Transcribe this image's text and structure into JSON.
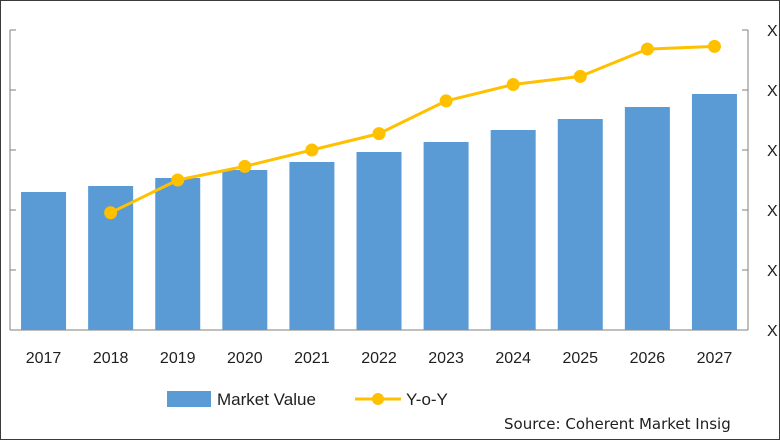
{
  "chart_data": {
    "type": "bar",
    "categories": [
      "2017",
      "2018",
      "2019",
      "2020",
      "2021",
      "2022",
      "2023",
      "2024",
      "2025",
      "2026",
      "2027"
    ],
    "series": [
      {
        "name": "Market Value",
        "type": "bar",
        "color": "#5b9bd5",
        "values": [
          138,
          144,
          152,
          160,
          168,
          178,
          188,
          200,
          211,
          223,
          236
        ]
      },
      {
        "name": "Y-o-Y",
        "type": "line",
        "color": "#ffc000",
        "marker": "circle",
        "values": [
          null,
          4.3,
          5.5,
          6.0,
          6.6,
          7.2,
          8.4,
          9.0,
          9.3,
          10.3,
          10.4
        ]
      }
    ],
    "y_left": {
      "ylim": [
        0,
        300
      ],
      "ticks": [
        "",
        "",
        "",
        "",
        "",
        ""
      ]
    },
    "y_right": {
      "ylim": [
        0,
        11
      ],
      "ticks": [
        "X",
        "X",
        "X",
        "X",
        "X",
        "X"
      ]
    },
    "grid": false,
    "legend_position": "bottom-center"
  },
  "source": "Source: Coherent Market Insig"
}
